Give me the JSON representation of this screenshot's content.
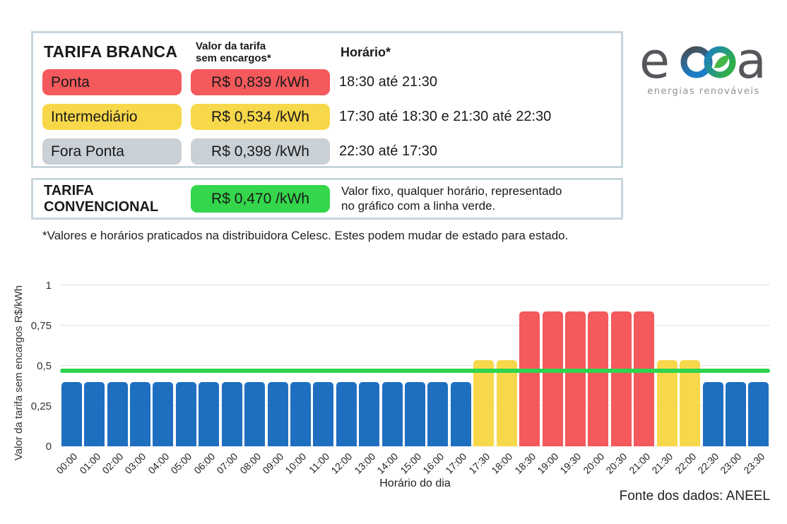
{
  "branca_table": {
    "title": "TARIFA BRANCA",
    "col_price_line1": "Valor da tarifa",
    "col_price_line2": "sem encargos*",
    "col_time": "Horário*",
    "rows": [
      {
        "label": "Ponta",
        "price": "R$ 0,839 /kWh",
        "time": "18:30 até 21:30",
        "color": "#f4595c"
      },
      {
        "label": "Intermediário",
        "price": "R$ 0,534 /kWh",
        "time": "17:30 até 18:30 e 21:30 até 22:30",
        "color": "#f8d84b"
      },
      {
        "label": "Fora Ponta",
        "price": "R$ 0,398 /kWh",
        "time": "22:30 até 17:30",
        "color": "#c9d0d6"
      }
    ]
  },
  "convencional": {
    "title_line1": "TARIFA",
    "title_line2": "CONVENCIONAL",
    "price": "R$ 0,470 /kWh",
    "color": "#34d64b",
    "description_line1": "Valor fixo, qualquer horário, representado",
    "description_line2": "no gráfico com a linha verde."
  },
  "footnote": "*Valores e horários praticados na distribuidora Celesc. Estes podem mudar de estado para estado.",
  "logo": {
    "text_left": "e",
    "text_right": "a",
    "tagline": "energias renováveis"
  },
  "source": "Fonte dos dados: ANEEL",
  "chart_data": {
    "type": "bar",
    "title": "",
    "xlabel": "Horário do dia",
    "ylabel": "Valor da tarifa sem encargos R$/kWh",
    "ylim": [
      0,
      1
    ],
    "grid": true,
    "yticks": [
      {
        "value": 0,
        "label": "0"
      },
      {
        "value": 0.25,
        "label": "0,25"
      },
      {
        "value": 0.5,
        "label": "0,5"
      },
      {
        "value": 0.75,
        "label": "0,75"
      },
      {
        "value": 1,
        "label": "1"
      }
    ],
    "categories": [
      "00:00",
      "01:00",
      "02:00",
      "03:00",
      "04:00",
      "05:00",
      "06:00",
      "07:00",
      "08:00",
      "09:00",
      "10:00",
      "11:00",
      "12:00",
      "13:00",
      "14:00",
      "15:00",
      "16:00",
      "17:00",
      "17:30",
      "18:00",
      "18:30",
      "19:00",
      "19:30",
      "20:00",
      "20:30",
      "21:00",
      "21:30",
      "22:00",
      "22:30",
      "23:00",
      "23:30"
    ],
    "values": [
      0.398,
      0.398,
      0.398,
      0.398,
      0.398,
      0.398,
      0.398,
      0.398,
      0.398,
      0.398,
      0.398,
      0.398,
      0.398,
      0.398,
      0.398,
      0.398,
      0.398,
      0.398,
      0.534,
      0.534,
      0.839,
      0.839,
      0.839,
      0.839,
      0.839,
      0.839,
      0.534,
      0.534,
      0.398,
      0.398,
      0.398
    ],
    "periods": [
      "fora_ponta",
      "fora_ponta",
      "fora_ponta",
      "fora_ponta",
      "fora_ponta",
      "fora_ponta",
      "fora_ponta",
      "fora_ponta",
      "fora_ponta",
      "fora_ponta",
      "fora_ponta",
      "fora_ponta",
      "fora_ponta",
      "fora_ponta",
      "fora_ponta",
      "fora_ponta",
      "fora_ponta",
      "fora_ponta",
      "intermediario",
      "intermediario",
      "ponta",
      "ponta",
      "ponta",
      "ponta",
      "ponta",
      "ponta",
      "intermediario",
      "intermediario",
      "fora_ponta",
      "fora_ponta",
      "fora_ponta"
    ],
    "colors": {
      "fora_ponta": "#1e6fc0",
      "intermediario": "#f8d84b",
      "ponta": "#f4595c"
    },
    "reference_line": {
      "value": 0.47,
      "color": "#2fd44f"
    },
    "legend_position": "none"
  }
}
